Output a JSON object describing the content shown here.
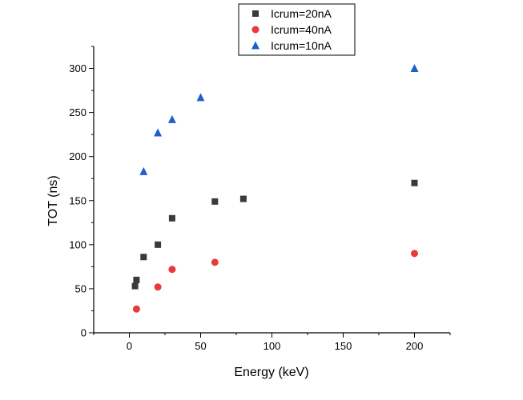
{
  "chart_data": {
    "type": "scatter",
    "title": "",
    "xlabel": "Energy (keV)",
    "ylabel": "TOT (ns)",
    "xlim": [
      -25,
      225
    ],
    "ylim": [
      0,
      325
    ],
    "xticks": [
      0,
      50,
      100,
      150,
      200
    ],
    "yticks": [
      0,
      50,
      100,
      150,
      200,
      250,
      300
    ],
    "grid": false,
    "legend_position": "top-right",
    "series": [
      {
        "name": "Icrum=20nA",
        "marker": "square",
        "color": "#3a3a3a",
        "x": [
          4,
          5,
          10,
          20,
          30,
          60,
          80,
          200
        ],
        "y": [
          53,
          60,
          86,
          100,
          130,
          149,
          152,
          170
        ]
      },
      {
        "name": "Icrum=40nA",
        "marker": "circle",
        "color": "#e8393f",
        "x": [
          5,
          20,
          30,
          60,
          200
        ],
        "y": [
          27,
          52,
          72,
          80,
          90
        ]
      },
      {
        "name": "Icrum=10nA",
        "marker": "triangle",
        "color": "#1f5fcc",
        "x": [
          10,
          20,
          30,
          50,
          200
        ],
        "y": [
          183,
          227,
          242,
          267,
          300
        ]
      }
    ]
  }
}
